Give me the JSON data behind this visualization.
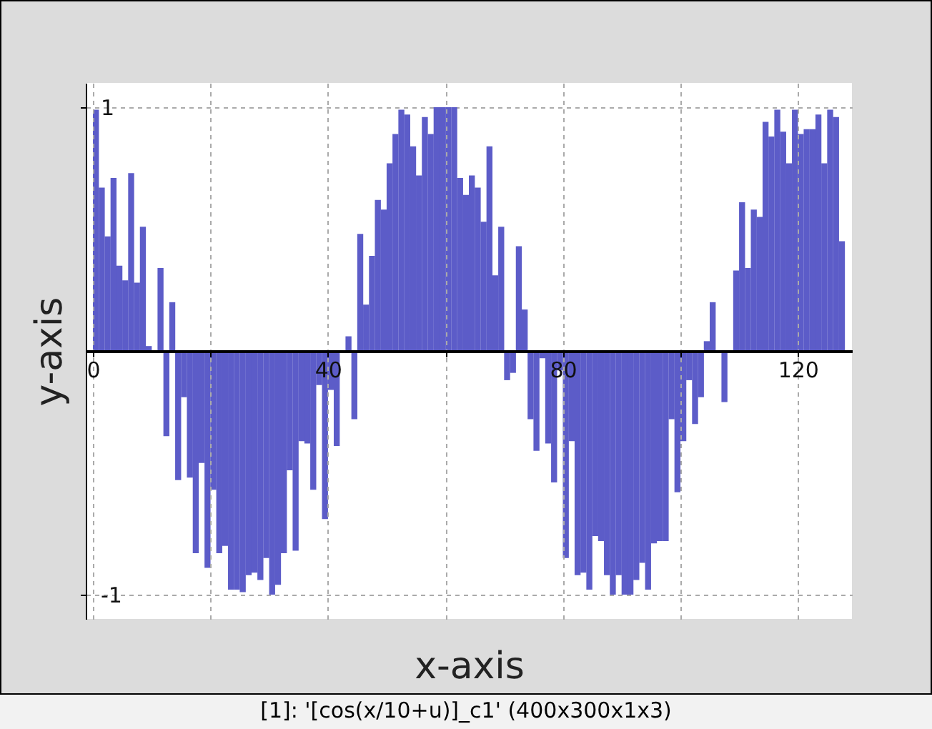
{
  "chart_data": {
    "type": "bar",
    "xlabel": "x-axis",
    "ylabel": "y-axis",
    "annotations": [
      "[1]: '[cos(x/10+u)]_c1' (400x300x1x3)"
    ],
    "x": [
      0,
      1,
      2,
      3,
      4,
      5,
      6,
      7,
      8,
      9,
      10,
      11,
      12,
      13,
      14,
      15,
      16,
      17,
      18,
      19,
      20,
      21,
      22,
      23,
      24,
      25,
      26,
      27,
      28,
      29,
      30,
      31,
      32,
      33,
      34,
      35,
      36,
      37,
      38,
      39,
      40,
      41,
      42,
      43,
      44,
      45,
      46,
      47,
      48,
      49,
      50,
      51,
      52,
      53,
      54,
      55,
      56,
      57,
      58,
      59,
      60,
      61,
      62,
      63,
      64,
      65,
      66,
      67,
      68,
      69,
      70,
      71,
      72,
      73,
      74,
      75,
      76,
      77,
      78,
      79,
      80,
      81,
      82,
      83,
      84,
      85,
      86,
      87,
      88,
      89,
      90,
      91,
      92,
      93,
      94,
      95,
      96,
      97,
      98,
      99,
      100,
      101,
      102,
      103,
      104,
      105,
      106,
      107,
      108,
      109,
      110,
      111,
      112,
      113,
      114,
      115,
      116,
      117,
      118,
      119,
      120,
      121,
      122,
      123,
      124,
      125,
      126,
      127
    ],
    "values": [
      0.99,
      0.67,
      0.47,
      0.71,
      0.35,
      0.29,
      0.73,
      0.28,
      0.51,
      0.02,
      0,
      0.34,
      -0.35,
      0.2,
      -0.53,
      -0.19,
      -0.52,
      -0.83,
      -0.46,
      -0.89,
      -0.57,
      -0.83,
      -0.8,
      -0.98,
      -0.98,
      -0.99,
      -0.92,
      -0.91,
      -0.94,
      -0.85,
      -1,
      -0.96,
      -0.83,
      -0.49,
      -0.82,
      -0.37,
      -0.38,
      -0.57,
      -0.14,
      -0.69,
      -0.16,
      -0.39,
      0,
      0.06,
      -0.28,
      0.48,
      0.19,
      0.39,
      0.62,
      0.58,
      0.77,
      0.89,
      0.99,
      0.97,
      0.84,
      0.72,
      0.96,
      0.89,
      1,
      1,
      1,
      1,
      0.71,
      0.64,
      0.72,
      0.67,
      0.53,
      0.84,
      0.31,
      0.51,
      -0.12,
      -0.09,
      0.43,
      0.17,
      -0.28,
      -0.41,
      -0.03,
      -0.38,
      -0.54,
      -0.08,
      -0.85,
      -0.37,
      -0.92,
      -0.91,
      -0.98,
      -0.76,
      -0.78,
      -0.92,
      -1,
      -0.92,
      -1,
      -1,
      -0.94,
      -0.87,
      -0.98,
      -0.79,
      -0.78,
      -0.78,
      -0.28,
      -0.58,
      -0.37,
      -0.12,
      -0.3,
      -0.19,
      0.04,
      0.2,
      0,
      -0.21,
      0,
      0.33,
      0.61,
      0.34,
      0.58,
      0.55,
      0.94,
      0.88,
      0.99,
      0.9,
      0.77,
      0.99,
      0.89,
      0.91,
      0.91,
      0.97,
      0.77,
      0.99,
      0.96,
      0.45
    ],
    "color": "#5c5cc8",
    "xlim": [
      0,
      128
    ],
    "xticks": [
      0,
      {
        "value": 20,
        "label": null
      },
      40,
      {
        "value": 60,
        "label": null
      },
      80,
      {
        "value": 100,
        "label": null
      },
      120
    ],
    "ylim": [
      -1.1,
      1.1
    ],
    "yticks": [
      -1,
      1
    ],
    "grid": true
  }
}
